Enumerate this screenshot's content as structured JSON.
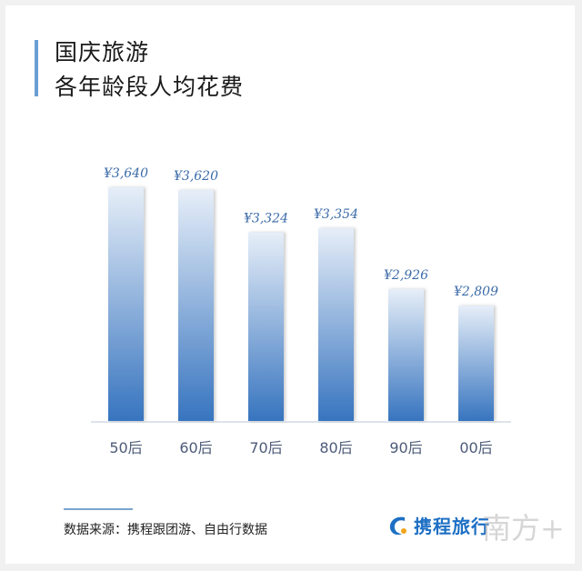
{
  "header": {
    "title_line1": "国庆旅游",
    "title_line2": "各年龄段人均花费"
  },
  "chart_data": {
    "type": "bar",
    "title": "国庆旅游 各年龄段人均花费",
    "categories": [
      "50后",
      "60后",
      "70后",
      "80后",
      "90后",
      "00后"
    ],
    "values": [
      3640,
      3620,
      3324,
      3354,
      2926,
      2809
    ],
    "data_labels": [
      "¥3,640",
      "¥3,620",
      "¥3,324",
      "¥3,354",
      "¥2,926",
      "¥2,809"
    ],
    "ylim": [
      2000,
      3700
    ],
    "grid": false,
    "colors": {
      "bar_top": "#e6eef8",
      "bar_bottom": "#3774bf",
      "label": "#3b6aa8",
      "tick": "#4d5b78"
    }
  },
  "footer": {
    "source": "数据来源：携程跟团游、自由行数据",
    "logo": "携程旅行",
    "watermark": "南方+"
  }
}
